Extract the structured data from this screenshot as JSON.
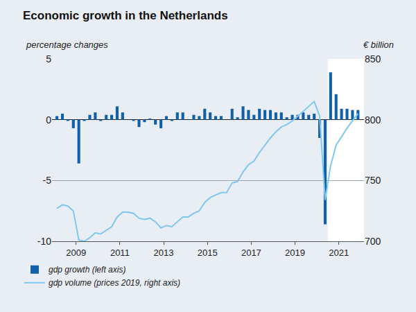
{
  "chart_data": {
    "type": "bar",
    "title": "Economic growth in the Netherlands",
    "ylabel": "percentage changes",
    "y2label": "€ billion",
    "x": [
      2008.125,
      2008.375,
      2008.625,
      2008.875,
      2009.125,
      2009.375,
      2009.625,
      2009.875,
      2010.125,
      2010.375,
      2010.625,
      2010.875,
      2011.125,
      2011.375,
      2011.625,
      2011.875,
      2012.125,
      2012.375,
      2012.625,
      2012.875,
      2013.125,
      2013.375,
      2013.625,
      2013.875,
      2014.125,
      2014.375,
      2014.625,
      2014.875,
      2015.125,
      2015.375,
      2015.625,
      2015.875,
      2016.125,
      2016.375,
      2016.625,
      2016.875,
      2017.125,
      2017.375,
      2017.625,
      2017.875,
      2018.125,
      2018.375,
      2018.625,
      2018.875,
      2019.125,
      2019.375,
      2019.625,
      2019.875,
      2020.125,
      2020.375,
      2020.625,
      2020.875,
      2021.125,
      2021.375,
      2021.625,
      2021.875
    ],
    "series": [
      {
        "name": "gdp growth (left axis)",
        "type": "bar",
        "color": "#1160aa",
        "axis": "y",
        "values": [
          0.3,
          0.5,
          -0.1,
          -0.7,
          -3.6,
          -0.1,
          0.4,
          0.6,
          -0.1,
          0.4,
          0.4,
          1.1,
          0.6,
          0.0,
          -0.1,
          -0.6,
          -0.2,
          0.1,
          -0.4,
          -0.7,
          0.3,
          -0.1,
          0.6,
          0.6,
          0.0,
          0.4,
          0.3,
          0.9,
          0.6,
          0.3,
          0.3,
          0.0,
          0.9,
          0.2,
          1.1,
          0.8,
          0.4,
          0.9,
          0.8,
          0.8,
          0.6,
          0.6,
          0.2,
          0.4,
          0.4,
          0.6,
          0.4,
          0.5,
          -1.5,
          -8.6,
          3.9,
          2.1,
          0.9,
          0.9,
          0.8,
          0.8
        ]
      },
      {
        "name": "gdp volume (prices 2019, right axis)",
        "type": "line",
        "color": "#7fc7ee",
        "axis": "y2",
        "values": [
          727,
          730,
          729,
          725,
          701,
          700,
          703,
          707,
          706,
          709,
          712,
          720,
          724,
          724,
          723,
          719,
          718,
          719,
          716,
          711,
          713,
          712,
          716,
          720,
          720,
          723,
          725,
          732,
          736,
          738,
          740,
          740,
          748,
          749,
          757,
          763,
          766,
          773,
          779,
          785,
          790,
          794,
          796,
          799,
          803,
          807,
          811,
          815,
          803,
          734,
          762,
          779,
          786,
          793,
          799,
          805
        ]
      }
    ],
    "xlim": [
      2007.9,
      2022.15
    ],
    "xticks": [
      2009,
      2011,
      2013,
      2015,
      2017,
      2019,
      2021
    ],
    "ylim": [
      -10,
      5
    ],
    "yticks": [
      -10,
      -5,
      0,
      5
    ],
    "y2lim": [
      700,
      850
    ],
    "y2ticks": [
      700,
      750,
      800,
      850
    ],
    "shaded_x": [
      2020.5,
      2022.15
    ],
    "grid": true,
    "legend": "bottom left"
  }
}
